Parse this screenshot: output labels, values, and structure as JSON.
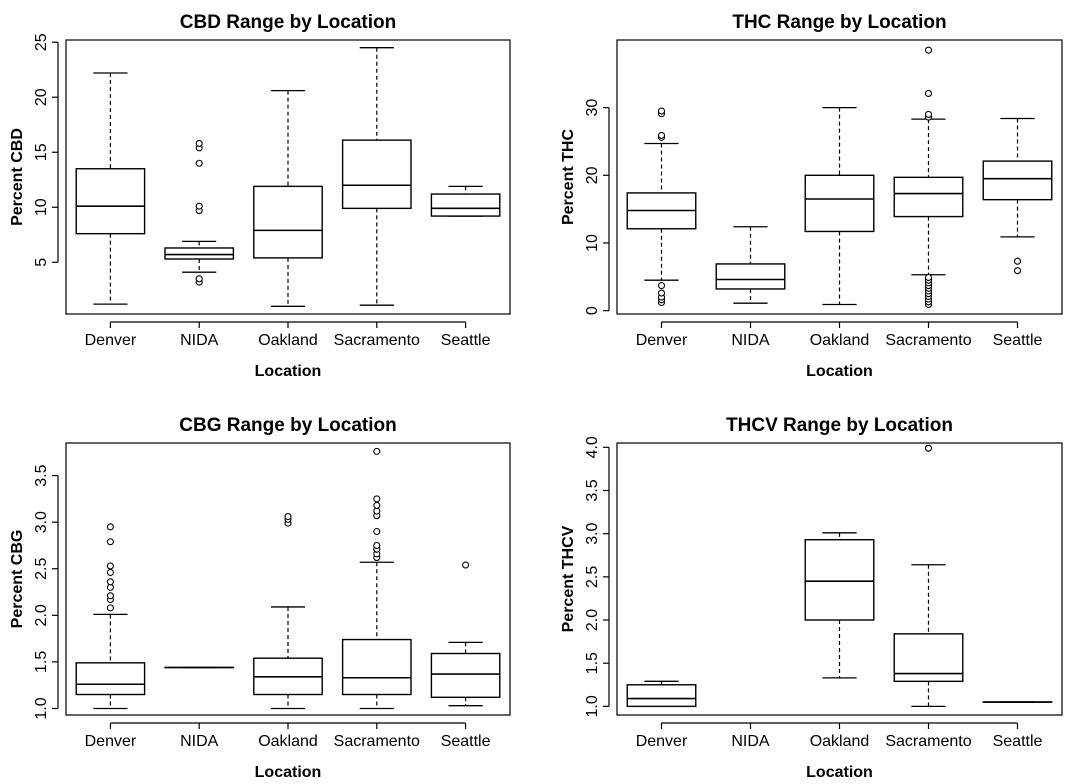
{
  "chart_data": [
    {
      "type": "box",
      "title": "CBD Range by Location",
      "xlabel": "Location",
      "ylabel": "Percent CBD",
      "ylim": [
        0.3,
        25.2
      ],
      "yticks": [
        5,
        10,
        15,
        20,
        25
      ],
      "categories": [
        "Denver",
        "NIDA",
        "Oakland",
        "Sacramento",
        "Seattle"
      ],
      "boxes": [
        {
          "category": "Denver",
          "min": 1.2,
          "q1": 7.6,
          "median": 10.1,
          "q3": 13.5,
          "max": 22.2,
          "outliers": []
        },
        {
          "category": "NIDA",
          "min": 4.1,
          "q1": 5.3,
          "median": 5.7,
          "q3": 6.3,
          "max": 6.9,
          "outliers": [
            3.2,
            3.5,
            9.7,
            10.1,
            14.0,
            15.4,
            15.8
          ]
        },
        {
          "category": "Oakland",
          "min": 1.0,
          "q1": 5.4,
          "median": 7.9,
          "q3": 11.9,
          "max": 20.6,
          "outliers": []
        },
        {
          "category": "Sacramento",
          "min": 1.1,
          "q1": 9.9,
          "median": 12.0,
          "q3": 16.1,
          "max": 24.5,
          "outliers": []
        },
        {
          "category": "Seattle",
          "min": 9.2,
          "q1": 9.2,
          "median": 9.9,
          "q3": 11.2,
          "max": 11.9,
          "outliers": []
        }
      ]
    },
    {
      "type": "box",
      "title": "THC Range by Location",
      "xlabel": "Location",
      "ylabel": "Percent THC",
      "ylim": [
        -0.5,
        40
      ],
      "yticks": [
        0,
        10,
        20,
        30
      ],
      "categories": [
        "Denver",
        "NIDA",
        "Oakland",
        "Sacramento",
        "Seattle"
      ],
      "boxes": [
        {
          "category": "Denver",
          "min": 4.5,
          "q1": 12.1,
          "median": 14.8,
          "q3": 17.4,
          "max": 24.7,
          "outliers": [
            1.2,
            1.6,
            2.0,
            2.6,
            3.7,
            25.6,
            25.9,
            29.1,
            29.5
          ]
        },
        {
          "category": "NIDA",
          "min": 1.1,
          "q1": 3.2,
          "median": 4.6,
          "q3": 6.9,
          "max": 12.4,
          "outliers": []
        },
        {
          "category": "Oakland",
          "min": 0.9,
          "q1": 11.7,
          "median": 16.5,
          "q3": 20.0,
          "max": 30.0,
          "outliers": []
        },
        {
          "category": "Sacramento",
          "min": 5.3,
          "q1": 13.9,
          "median": 17.3,
          "q3": 19.7,
          "max": 28.3,
          "outliers": [
            0.9,
            1.3,
            1.7,
            2.1,
            2.5,
            2.9,
            3.3,
            3.7,
            4.1,
            4.5,
            4.9,
            28.6,
            29.0,
            32.1,
            38.5
          ]
        },
        {
          "category": "Seattle",
          "min": 10.9,
          "q1": 16.4,
          "median": 19.5,
          "q3": 22.1,
          "max": 28.4,
          "outliers": [
            5.9,
            7.3
          ]
        }
      ]
    },
    {
      "type": "box",
      "title": "CBG Range by Location",
      "xlabel": "Location",
      "ylabel": "Percent CBG",
      "ylim": [
        0.93,
        3.85
      ],
      "yticks": [
        1.0,
        1.5,
        2.0,
        2.5,
        3.0,
        3.5
      ],
      "categories": [
        "Denver",
        "NIDA",
        "Oakland",
        "Sacramento",
        "Seattle"
      ],
      "boxes": [
        {
          "category": "Denver",
          "min": 1.0,
          "q1": 1.15,
          "median": 1.26,
          "q3": 1.49,
          "max": 2.01,
          "outliers": [
            2.08,
            2.17,
            2.21,
            2.3,
            2.36,
            2.46,
            2.53,
            2.79,
            2.95
          ]
        },
        {
          "category": "NIDA",
          "min": 1.44,
          "q1": 1.44,
          "median": 1.44,
          "q3": 1.44,
          "max": 1.44,
          "outliers": []
        },
        {
          "category": "Oakland",
          "min": 1.0,
          "q1": 1.15,
          "median": 1.34,
          "q3": 1.54,
          "max": 2.09,
          "outliers": [
            2.99,
            3.03,
            3.06
          ]
        },
        {
          "category": "Sacramento",
          "min": 1.0,
          "q1": 1.15,
          "median": 1.33,
          "q3": 1.74,
          "max": 2.57,
          "outliers": [
            2.62,
            2.66,
            2.71,
            2.75,
            2.9,
            3.07,
            3.12,
            3.18,
            3.25,
            3.76
          ]
        },
        {
          "category": "Seattle",
          "min": 1.03,
          "q1": 1.12,
          "median": 1.37,
          "q3": 1.59,
          "max": 1.71,
          "outliers": [
            2.54
          ]
        }
      ]
    },
    {
      "type": "box",
      "title": "THCV Range by Location",
      "xlabel": "Location",
      "ylabel": "Percent THCV",
      "ylim": [
        0.9,
        4.05
      ],
      "yticks": [
        1.0,
        1.5,
        2.0,
        2.5,
        3.0,
        3.5,
        4.0
      ],
      "categories": [
        "Denver",
        "NIDA",
        "Oakland",
        "Sacramento",
        "Seattle"
      ],
      "boxes": [
        {
          "category": "Denver",
          "min": 1.0,
          "q1": 1.0,
          "median": 1.09,
          "q3": 1.25,
          "max": 1.29,
          "outliers": []
        },
        {
          "category": "NIDA",
          "empty": true,
          "outliers": []
        },
        {
          "category": "Oakland",
          "min": 1.33,
          "q1": 2.0,
          "median": 2.45,
          "q3": 2.93,
          "max": 3.01,
          "outliers": []
        },
        {
          "category": "Sacramento",
          "min": 1.0,
          "q1": 1.29,
          "median": 1.38,
          "q3": 1.84,
          "max": 2.64,
          "outliers": [
            3.99
          ]
        },
        {
          "category": "Seattle",
          "min": 1.05,
          "q1": 1.05,
          "median": 1.05,
          "q3": 1.05,
          "max": 1.05,
          "outliers": []
        }
      ]
    }
  ]
}
